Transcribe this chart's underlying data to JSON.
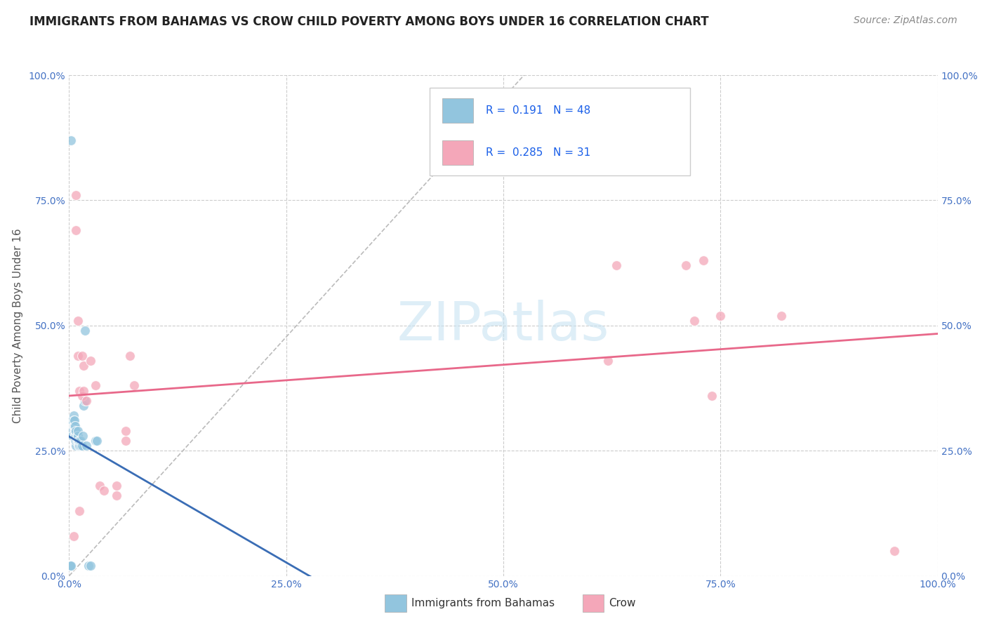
{
  "title": "IMMIGRANTS FROM BAHAMAS VS CROW CHILD POVERTY AMONG BOYS UNDER 16 CORRELATION CHART",
  "source": "Source: ZipAtlas.com",
  "ylabel": "Child Poverty Among Boys Under 16",
  "legend_label1": "Immigrants from Bahamas",
  "legend_label2": "Crow",
  "R1": 0.191,
  "N1": 48,
  "R2": 0.285,
  "N2": 31,
  "blue_color": "#92c5de",
  "pink_color": "#f4a7b9",
  "blue_line_color": "#3a6db5",
  "pink_line_color": "#e8688a",
  "watermark": "ZIPatlas",
  "blue_x": [
    0.001,
    0.002,
    0.002,
    0.003,
    0.004,
    0.004,
    0.004,
    0.005,
    0.005,
    0.005,
    0.006,
    0.006,
    0.006,
    0.006,
    0.007,
    0.007,
    0.007,
    0.007,
    0.007,
    0.008,
    0.008,
    0.008,
    0.008,
    0.009,
    0.009,
    0.01,
    0.01,
    0.01,
    0.01,
    0.01,
    0.011,
    0.011,
    0.012,
    0.012,
    0.013,
    0.013,
    0.015,
    0.016,
    0.017,
    0.018,
    0.018,
    0.02,
    0.022,
    0.025,
    0.03,
    0.032,
    0.001,
    0.002
  ],
  "blue_y": [
    0.02,
    0.87,
    0.02,
    0.31,
    0.29,
    0.31,
    0.28,
    0.32,
    0.3,
    0.31,
    0.29,
    0.3,
    0.3,
    0.31,
    0.27,
    0.28,
    0.28,
    0.29,
    0.3,
    0.26,
    0.27,
    0.28,
    0.29,
    0.27,
    0.28,
    0.27,
    0.27,
    0.28,
    0.28,
    0.29,
    0.26,
    0.27,
    0.26,
    0.27,
    0.26,
    0.27,
    0.26,
    0.28,
    0.34,
    0.35,
    0.49,
    0.26,
    0.02,
    0.02,
    0.27,
    0.27,
    0.02,
    0.02
  ],
  "pink_x": [
    0.005,
    0.008,
    0.008,
    0.01,
    0.01,
    0.012,
    0.012,
    0.015,
    0.015,
    0.017,
    0.017,
    0.02,
    0.025,
    0.03,
    0.035,
    0.04,
    0.055,
    0.055,
    0.065,
    0.065,
    0.07,
    0.075,
    0.62,
    0.63,
    0.71,
    0.72,
    0.73,
    0.74,
    0.75,
    0.82,
    0.95
  ],
  "pink_y": [
    0.08,
    0.76,
    0.69,
    0.51,
    0.44,
    0.37,
    0.13,
    0.44,
    0.36,
    0.42,
    0.37,
    0.35,
    0.43,
    0.38,
    0.18,
    0.17,
    0.18,
    0.16,
    0.29,
    0.27,
    0.44,
    0.38,
    0.43,
    0.62,
    0.62,
    0.51,
    0.63,
    0.36,
    0.52,
    0.52,
    0.05
  ],
  "yticks": [
    0.0,
    0.25,
    0.5,
    0.75,
    1.0
  ],
  "ytick_labels": [
    "0.0%",
    "25.0%",
    "50.0%",
    "75.0%",
    "100.0%"
  ],
  "xticks": [
    0.0,
    0.25,
    0.5,
    0.75,
    1.0
  ],
  "xtick_labels": [
    "0.0%",
    "25.0%",
    "50.0%",
    "75.0%",
    "100.0%"
  ]
}
